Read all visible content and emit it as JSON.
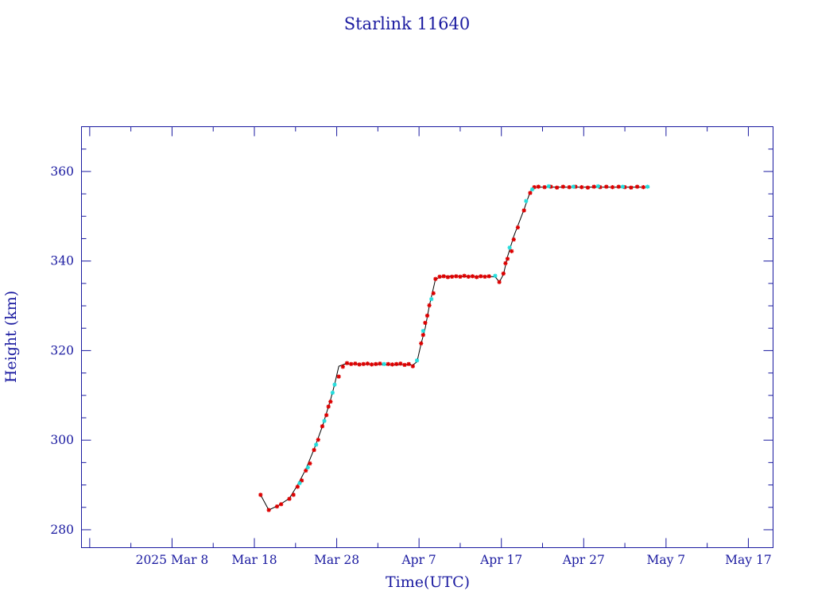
{
  "chart_data": {
    "type": "scatter",
    "title": "Starlink 11640",
    "xlabel": "Time(UTC)",
    "ylabel": "Height (km)",
    "x_unit": "days",
    "xlim": [
      "2025-02-25",
      "2025-05-20"
    ],
    "ylim": [
      276,
      370
    ],
    "x_ticks": [
      {
        "date": "2025-03-08",
        "label": "2025 Mar  8"
      },
      {
        "date": "2025-03-18",
        "label": "Mar 18"
      },
      {
        "date": "2025-03-28",
        "label": "Mar 28"
      },
      {
        "date": "2025-04-07",
        "label": "Apr  7"
      },
      {
        "date": "2025-04-17",
        "label": "Apr 17"
      },
      {
        "date": "2025-04-27",
        "label": "Apr 27"
      },
      {
        "date": "2025-05-07",
        "label": "May  7"
      },
      {
        "date": "2025-05-17",
        "label": "May 17"
      }
    ],
    "y_ticks": [
      280,
      300,
      320,
      340,
      360
    ],
    "grid": false,
    "colors": {
      "primary_marker": "#dd0000",
      "secondary_marker": "#22dddd",
      "trend_line": "#000000",
      "axis": "#1a1aa0"
    },
    "trend": [
      [
        "2025-03-18T18:00",
        287.8
      ],
      [
        "2025-03-19T18:00",
        284.4
      ],
      [
        "2025-03-21T00:00",
        285.5
      ],
      [
        "2025-03-22T06:00",
        287.0
      ],
      [
        "2025-03-23T06:00",
        290.0
      ],
      [
        "2025-03-24T06:00",
        293.5
      ],
      [
        "2025-03-25T06:00",
        298.0
      ],
      [
        "2025-03-26T06:00",
        303.0
      ],
      [
        "2025-03-27T06:00",
        309.0
      ],
      [
        "2025-03-27T18:00",
        312.5
      ],
      [
        "2025-03-28T06:00",
        316.5
      ],
      [
        "2025-03-29T00:00",
        317.0
      ],
      [
        "2025-04-06T06:00",
        316.8
      ],
      [
        "2025-04-06T18:00",
        317.5
      ],
      [
        "2025-04-07T06:00",
        321.5
      ],
      [
        "2025-04-07T18:00",
        325.0
      ],
      [
        "2025-04-08T06:00",
        330.0
      ],
      [
        "2025-04-09T00:00",
        336.0
      ],
      [
        "2025-04-10T00:00",
        336.6
      ],
      [
        "2025-04-16T06:00",
        336.5
      ],
      [
        "2025-04-16T18:00",
        335.3
      ],
      [
        "2025-04-17T06:00",
        337.0
      ],
      [
        "2025-04-17T18:00",
        341.0
      ],
      [
        "2025-04-18T12:00",
        345.5
      ],
      [
        "2025-04-19T18:00",
        351.5
      ],
      [
        "2025-04-20T12:00",
        355.5
      ],
      [
        "2025-04-21T00:00",
        356.5
      ],
      [
        "2025-05-05T00:00",
        356.5
      ]
    ],
    "series": [
      {
        "marker": "asterisk",
        "color": "#dd0000",
        "points": [
          [
            "2025-03-18T18:00",
            287.8
          ],
          [
            "2025-03-19T18:00",
            284.4
          ],
          [
            "2025-03-20T18:00",
            285.2
          ],
          [
            "2025-03-21T06:00",
            285.7
          ],
          [
            "2025-03-22T06:00",
            286.9
          ],
          [
            "2025-03-22T18:00",
            287.8
          ],
          [
            "2025-03-23T06:00",
            289.6
          ],
          [
            "2025-03-23T18:00",
            291.0
          ],
          [
            "2025-03-24T06:00",
            293.2
          ],
          [
            "2025-03-24T18:00",
            294.8
          ],
          [
            "2025-03-25T06:00",
            297.8
          ],
          [
            "2025-03-25T18:00",
            300.1
          ],
          [
            "2025-03-26T06:00",
            303.1
          ],
          [
            "2025-03-26T18:00",
            305.6
          ],
          [
            "2025-03-27T00:00",
            307.5
          ],
          [
            "2025-03-27T06:00",
            308.6
          ],
          [
            "2025-03-28T06:00",
            314.2
          ],
          [
            "2025-03-28T18:00",
            316.4
          ],
          [
            "2025-03-29T06:00",
            317.2
          ],
          [
            "2025-03-29T18:00",
            317.0
          ],
          [
            "2025-03-30T06:00",
            317.1
          ],
          [
            "2025-03-30T18:00",
            316.9
          ],
          [
            "2025-03-31T06:00",
            317.0
          ],
          [
            "2025-03-31T18:00",
            317.1
          ],
          [
            "2025-04-01T06:00",
            316.9
          ],
          [
            "2025-04-01T18:00",
            317.0
          ],
          [
            "2025-04-02T06:00",
            317.1
          ],
          [
            "2025-04-03T06:00",
            317.0
          ],
          [
            "2025-04-03T18:00",
            316.9
          ],
          [
            "2025-04-04T06:00",
            317.0
          ],
          [
            "2025-04-04T18:00",
            317.1
          ],
          [
            "2025-04-05T06:00",
            316.8
          ],
          [
            "2025-04-05T18:00",
            317.0
          ],
          [
            "2025-04-06T06:00",
            316.5
          ],
          [
            "2025-04-07T06:00",
            321.6
          ],
          [
            "2025-04-07T12:00",
            323.5
          ],
          [
            "2025-04-07T18:00",
            326.2
          ],
          [
            "2025-04-08T00:00",
            327.8
          ],
          [
            "2025-04-08T06:00",
            330.1
          ],
          [
            "2025-04-08T18:00",
            332.8
          ],
          [
            "2025-04-09T00:00",
            336.0
          ],
          [
            "2025-04-09T12:00",
            336.5
          ],
          [
            "2025-04-10T00:00",
            336.6
          ],
          [
            "2025-04-10T12:00",
            336.4
          ],
          [
            "2025-04-11T00:00",
            336.5
          ],
          [
            "2025-04-11T12:00",
            336.6
          ],
          [
            "2025-04-12T00:00",
            336.5
          ],
          [
            "2025-04-12T12:00",
            336.7
          ],
          [
            "2025-04-13T00:00",
            336.5
          ],
          [
            "2025-04-13T12:00",
            336.6
          ],
          [
            "2025-04-14T00:00",
            336.4
          ],
          [
            "2025-04-14T12:00",
            336.6
          ],
          [
            "2025-04-15T00:00",
            336.5
          ],
          [
            "2025-04-15T12:00",
            336.6
          ],
          [
            "2025-04-16T18:00",
            335.3
          ],
          [
            "2025-04-17T06:00",
            337.2
          ],
          [
            "2025-04-17T12:00",
            339.5
          ],
          [
            "2025-04-17T18:00",
            340.5
          ],
          [
            "2025-04-18T06:00",
            342.2
          ],
          [
            "2025-04-18T12:00",
            344.8
          ],
          [
            "2025-04-19T00:00",
            347.5
          ],
          [
            "2025-04-19T18:00",
            351.3
          ],
          [
            "2025-04-20T12:00",
            355.2
          ],
          [
            "2025-04-21T00:00",
            356.5
          ],
          [
            "2025-04-21T12:00",
            356.6
          ],
          [
            "2025-04-22T06:00",
            356.5
          ],
          [
            "2025-04-23T00:00",
            356.6
          ],
          [
            "2025-04-23T18:00",
            356.4
          ],
          [
            "2025-04-24T12:00",
            356.6
          ],
          [
            "2025-04-25T06:00",
            356.5
          ],
          [
            "2025-04-26T00:00",
            356.6
          ],
          [
            "2025-04-26T18:00",
            356.5
          ],
          [
            "2025-04-27T12:00",
            356.4
          ],
          [
            "2025-04-28T06:00",
            356.6
          ],
          [
            "2025-04-29T00:00",
            356.5
          ],
          [
            "2025-04-29T18:00",
            356.6
          ],
          [
            "2025-04-30T12:00",
            356.5
          ],
          [
            "2025-05-01T06:00",
            356.6
          ],
          [
            "2025-05-02T00:00",
            356.5
          ],
          [
            "2025-05-02T18:00",
            356.4
          ],
          [
            "2025-05-03T12:00",
            356.6
          ],
          [
            "2025-05-04T06:00",
            356.5
          ]
        ]
      },
      {
        "marker": "asterisk",
        "color": "#22dddd",
        "points": [
          [
            "2025-03-23T12:00",
            290.4
          ],
          [
            "2025-03-24T12:00",
            293.9
          ],
          [
            "2025-03-25T12:00",
            299.0
          ],
          [
            "2025-03-26T12:00",
            304.3
          ],
          [
            "2025-03-27T12:00",
            310.6
          ],
          [
            "2025-03-27T18:00",
            312.4
          ],
          [
            "2025-04-02T18:00",
            317.0
          ],
          [
            "2025-04-06T18:00",
            317.8
          ],
          [
            "2025-04-07T12:00",
            324.4
          ],
          [
            "2025-04-08T12:00",
            331.5
          ],
          [
            "2025-04-16T06:00",
            336.7
          ],
          [
            "2025-04-18T00:00",
            343.0
          ],
          [
            "2025-04-20T00:00",
            353.4
          ],
          [
            "2025-04-20T18:00",
            356.0
          ],
          [
            "2025-04-22T18:00",
            356.7
          ],
          [
            "2025-04-25T18:00",
            356.6
          ],
          [
            "2025-04-28T18:00",
            356.7
          ],
          [
            "2025-05-01T18:00",
            356.6
          ],
          [
            "2025-05-04T18:00",
            356.6
          ]
        ]
      }
    ]
  }
}
